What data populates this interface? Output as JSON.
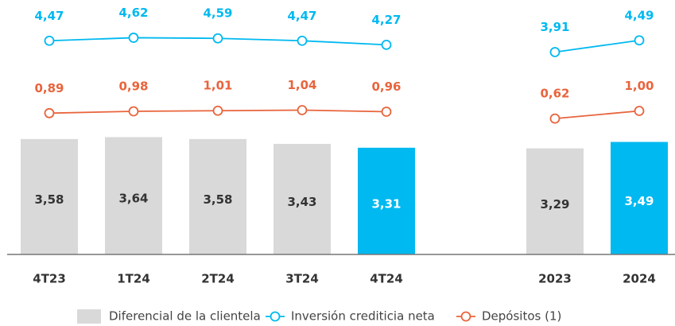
{
  "chart_data": {
    "type": "bar_line",
    "categories": [
      "4T23",
      "1T24",
      "2T24",
      "3T24",
      "4T24",
      null,
      "2023",
      "2024"
    ],
    "ylim": [
      0,
      7.4
    ],
    "y2lim": [
      -6.1,
      5.7
    ],
    "series": [
      {
        "name": "Diferencial de la clientela",
        "type": "bar",
        "colors": [
          "#d9d9d9",
          "#d9d9d9",
          "#d9d9d9",
          "#d9d9d9",
          "#00b9f0",
          null,
          "#d9d9d9",
          "#00b9f0"
        ],
        "values": [
          3.58,
          3.64,
          3.58,
          3.43,
          3.31,
          null,
          3.29,
          3.49
        ],
        "value_labels": [
          "3,58",
          "3,64",
          "3,58",
          "3,43",
          "3,31",
          null,
          "3,29",
          "3,49"
        ]
      },
      {
        "name": "Inversión crediticia neta",
        "type": "line",
        "axis": "y2",
        "color": "#00b9f0",
        "values": [
          4.47,
          4.62,
          4.59,
          4.47,
          4.27,
          null,
          3.91,
          4.49
        ],
        "value_labels": [
          "4,47",
          "4,62",
          "4,59",
          "4,47",
          "4,27",
          null,
          "3,91",
          "4,49"
        ]
      },
      {
        "name": "Depósitos (1)",
        "type": "line",
        "axis": "y2",
        "color": "#e8643c",
        "values": [
          0.89,
          0.98,
          1.01,
          1.04,
          0.96,
          null,
          0.62,
          1.0
        ],
        "value_labels": [
          "0,89",
          "0,98",
          "1,01",
          "1,04",
          "0,96",
          null,
          "0,62",
          "1,00"
        ]
      }
    ]
  }
}
